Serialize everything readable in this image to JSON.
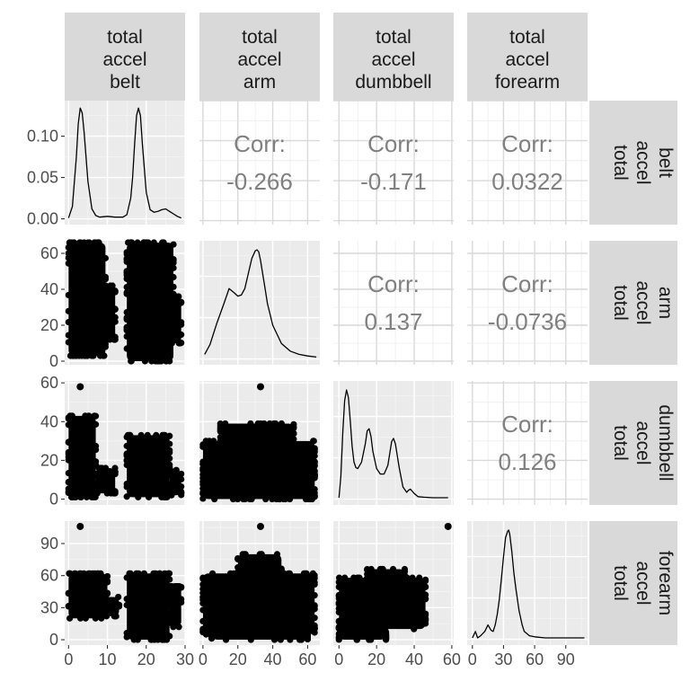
{
  "chart_data": {
    "type": "scatter",
    "matrix_type": "pairs",
    "variables": [
      {
        "name": "total_accel_belt",
        "label_lines": [
          "total",
          "accel",
          "belt"
        ],
        "range": [
          -1,
          30
        ],
        "ticks": [
          0,
          10,
          20,
          30
        ]
      },
      {
        "name": "total_accel_arm",
        "label_lines": [
          "total",
          "accel",
          "arm"
        ],
        "range": [
          -2,
          67
        ],
        "ticks": [
          0,
          20,
          40,
          60
        ]
      },
      {
        "name": "total_accel_dumbbell",
        "label_lines": [
          "total",
          "accel",
          "dumbbell"
        ],
        "range": [
          -3,
          61
        ],
        "ticks": [
          0,
          20,
          40,
          60
        ]
      },
      {
        "name": "total_accel_forearm",
        "label_lines": [
          "total",
          "accel",
          "forearm"
        ],
        "range": [
          -5,
          111
        ],
        "ticks": [
          0,
          30,
          60,
          90
        ]
      }
    ],
    "diag_density_axis": {
      "ylim": [
        -0.007,
        0.143
      ],
      "ticks": [
        "0.00",
        "0.05",
        "0.10"
      ]
    },
    "densities": [
      {
        "x": [
          0,
          1,
          2,
          2.5,
          3,
          3.5,
          4,
          5,
          6,
          7,
          8,
          10,
          12,
          14,
          15,
          16,
          16.5,
          17,
          17.5,
          18,
          18.5,
          19,
          20,
          21,
          22,
          23,
          24,
          25,
          26,
          27,
          28,
          29
        ],
        "y": [
          0.001,
          0.015,
          0.075,
          0.115,
          0.134,
          0.128,
          0.105,
          0.045,
          0.012,
          0.004,
          0.002,
          0.003,
          0.002,
          0.002,
          0.005,
          0.025,
          0.05,
          0.09,
          0.125,
          0.134,
          0.125,
          0.09,
          0.032,
          0.011,
          0.008,
          0.009,
          0.011,
          0.012,
          0.009,
          0.006,
          0.003,
          0.001
        ]
      },
      {
        "x": [
          1,
          4,
          8,
          12,
          15,
          18,
          20,
          22,
          24,
          26,
          28,
          30,
          31,
          32,
          33,
          35,
          37,
          40,
          45,
          50,
          55,
          60,
          65
        ],
        "y": [
          0.03,
          0.12,
          0.32,
          0.5,
          0.64,
          0.6,
          0.57,
          0.58,
          0.64,
          0.78,
          0.92,
          0.99,
          1.0,
          0.98,
          0.9,
          0.7,
          0.5,
          0.3,
          0.13,
          0.06,
          0.03,
          0.015,
          0.005
        ]
      },
      {
        "x": [
          0,
          1,
          2,
          3,
          4,
          5,
          6,
          7,
          8,
          9,
          10,
          12,
          14,
          15,
          16,
          17,
          18,
          20,
          22,
          24,
          26,
          27,
          28,
          29,
          30,
          32,
          34,
          36,
          37,
          38,
          40,
          42,
          45,
          50,
          58
        ],
        "y": [
          0.0,
          0.2,
          0.6,
          0.9,
          1.0,
          0.93,
          0.72,
          0.48,
          0.33,
          0.28,
          0.27,
          0.33,
          0.5,
          0.62,
          0.64,
          0.57,
          0.43,
          0.27,
          0.22,
          0.22,
          0.3,
          0.41,
          0.52,
          0.55,
          0.5,
          0.28,
          0.1,
          0.05,
          0.07,
          0.08,
          0.04,
          0.01,
          0.005,
          0.0,
          0.0
        ]
      },
      {
        "x": [
          0,
          3,
          5,
          8,
          12,
          15,
          18,
          20,
          22,
          24,
          26,
          28,
          30,
          32,
          34,
          35,
          36,
          38,
          40,
          42,
          45,
          48,
          50,
          55,
          60,
          70,
          80,
          108
        ],
        "y": [
          0.0,
          0.06,
          0.0,
          0.02,
          0.06,
          0.12,
          0.07,
          0.06,
          0.12,
          0.22,
          0.36,
          0.55,
          0.75,
          0.93,
          0.99,
          1.0,
          0.96,
          0.8,
          0.6,
          0.45,
          0.25,
          0.12,
          0.06,
          0.02,
          0.01,
          0.0,
          0.0,
          0.0
        ]
      }
    ],
    "correlations": [
      {
        "row": 0,
        "col": 1,
        "label": "Corr:",
        "value": "-0.266"
      },
      {
        "row": 0,
        "col": 2,
        "label": "Corr:",
        "value": "-0.171"
      },
      {
        "row": 0,
        "col": 3,
        "label": "Corr:",
        "value": "0.0322"
      },
      {
        "row": 1,
        "col": 2,
        "label": "Corr:",
        "value": "0.137"
      },
      {
        "row": 1,
        "col": 3,
        "label": "Corr:",
        "value": "-0.0736"
      },
      {
        "row": 2,
        "col": 3,
        "label": "Corr:",
        "value": "0.126"
      }
    ],
    "scatter_regions": [
      {
        "row": 1,
        "col": 0,
        "blobs": [
          {
            "x": [
              0,
              9.5
            ],
            "y": [
              3,
              66
            ]
          },
          {
            "x": [
              8,
              12
            ],
            "y": [
              12,
              42
            ]
          },
          {
            "x": [
              15,
              27
            ],
            "y": [
              0,
              66
            ]
          },
          {
            "x": [
              26,
              29
            ],
            "y": [
              10,
              36
            ]
          }
        ]
      },
      {
        "row": 2,
        "col": 0,
        "blobs": [
          {
            "x": [
              0,
              7
            ],
            "y": [
              1,
              43
            ]
          },
          {
            "x": [
              7,
              12
            ],
            "y": [
              3,
              16
            ]
          },
          {
            "x": [
              15,
              26
            ],
            "y": [
              1,
              33
            ]
          },
          {
            "x": [
              26,
              29
            ],
            "y": [
              2,
              15
            ]
          }
        ]
      },
      {
        "row": 2,
        "col": 1,
        "blobs": [
          {
            "x": [
              0,
              64
            ],
            "y": [
              0,
              30
            ]
          },
          {
            "x": [
              10,
              52
            ],
            "y": [
              28,
              39
            ]
          },
          {
            "x": [
              40,
              64
            ],
            "y": [
              0,
              20
            ]
          }
        ]
      },
      {
        "row": 3,
        "col": 0,
        "blobs": [
          {
            "x": [
              0,
              10
            ],
            "y": [
              20,
              62
            ]
          },
          {
            "x": [
              8,
              13
            ],
            "y": [
              22,
              40
            ]
          },
          {
            "x": [
              15,
              26
            ],
            "y": [
              0,
              62
            ]
          },
          {
            "x": [
              26,
              29
            ],
            "y": [
              12,
              50
            ]
          }
        ]
      },
      {
        "row": 3,
        "col": 1,
        "blobs": [
          {
            "x": [
              0,
              64
            ],
            "y": [
              5,
              62
            ]
          },
          {
            "x": [
              5,
              60
            ],
            "y": [
              0,
              8
            ]
          },
          {
            "x": [
              20,
              45
            ],
            "y": [
              60,
              80
            ]
          }
        ]
      },
      {
        "row": 3,
        "col": 2,
        "blobs": [
          {
            "x": [
              0,
              46
            ],
            "y": [
              10,
              58
            ]
          },
          {
            "x": [
              0,
              25
            ],
            "y": [
              0,
              12
            ]
          },
          {
            "x": [
              15,
              35
            ],
            "y": [
              56,
              66
            ]
          }
        ]
      }
    ],
    "scatter_points": [
      {
        "row": 2,
        "col": 0,
        "x": 3,
        "y": 58
      },
      {
        "row": 2,
        "col": 1,
        "x": 33,
        "y": 58
      },
      {
        "row": 3,
        "col": 0,
        "x": 3,
        "y": 106
      },
      {
        "row": 3,
        "col": 1,
        "x": 33,
        "y": 106
      },
      {
        "row": 3,
        "col": 2,
        "x": 58,
        "y": 106
      }
    ],
    "grid": true,
    "title": "",
    "xlabel": "",
    "ylabel": ""
  }
}
